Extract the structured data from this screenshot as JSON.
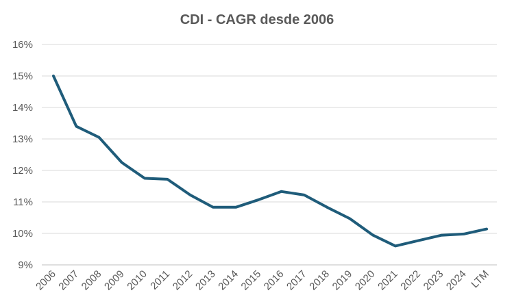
{
  "chart_data": {
    "type": "line",
    "title": "CDI - CAGR desde 2006",
    "xlabel": "",
    "ylabel": "",
    "categories": [
      "2006",
      "2007",
      "2008",
      "2009",
      "2010",
      "2011",
      "2012",
      "2013",
      "2014",
      "2015",
      "2016",
      "2017",
      "2018",
      "2019",
      "2020",
      "2021",
      "2022",
      "2023",
      "2024",
      "LTM"
    ],
    "series": [
      {
        "values": [
          15.0,
          13.4,
          13.05,
          12.25,
          11.75,
          11.72,
          11.22,
          10.83,
          10.83,
          11.07,
          11.33,
          11.22,
          10.83,
          10.47,
          9.95,
          9.6,
          9.77,
          9.94,
          9.98,
          10.14
        ],
        "color": "#1f5c7a"
      }
    ],
    "yticks": [
      "9%",
      "10%",
      "11%",
      "12%",
      "13%",
      "14%",
      "15%",
      "16%"
    ],
    "ylim": [
      9,
      16
    ],
    "grid": true,
    "legend": "none"
  }
}
